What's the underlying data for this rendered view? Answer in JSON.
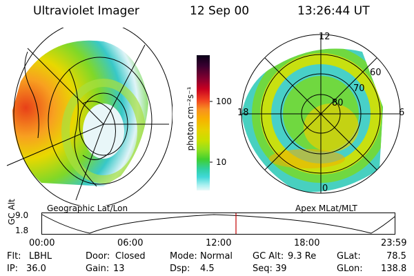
{
  "header": {
    "instrument": "Ultraviolet Imager",
    "date": "12 Sep 00",
    "time": "13:26:44 UT"
  },
  "left_panel": {
    "caption": "Geographic Lat/Lon"
  },
  "right_panel": {
    "caption": "Apex MLat/MLT",
    "mlt_labels": {
      "top": "12",
      "left": "18",
      "right": "6",
      "bottom": "0"
    },
    "lat_labels": [
      "60",
      "70",
      "80"
    ]
  },
  "colorbar": {
    "unit_label": "photon cm⁻²s⁻¹",
    "tick_labels": [
      "100",
      "10"
    ],
    "colors": [
      "#0a0018",
      "#3a0030",
      "#8a0030",
      "#c80020",
      "#f04020",
      "#f89020",
      "#f8b000",
      "#e8d000",
      "#c8e000",
      "#90e020",
      "#40d030",
      "#30d0a0",
      "#40d8d8",
      "#a8f0f0",
      "#e8f8f8"
    ]
  },
  "altitude_strip": {
    "axis_label": "GC Alt",
    "y_ticks": [
      "9.0",
      "1.8"
    ],
    "x_ticks": [
      "00:00",
      "06:00",
      "12:00",
      "18:00",
      "23:59"
    ],
    "marker_color": "#c00000"
  },
  "status": {
    "filter": {
      "label": "Flt:",
      "value": "LBHL"
    },
    "ip": {
      "label": "IP:",
      "value": "36.0"
    },
    "door": {
      "label": "Door:",
      "value": "Closed"
    },
    "gain": {
      "label": "Gain:",
      "value": "13"
    },
    "mode": {
      "label": "Mode:",
      "value": "Normal"
    },
    "dsp": {
      "label": "Dsp:",
      "value": "4.5"
    },
    "gc_alt": {
      "label": "GC Alt:",
      "value": "9.3 Re"
    },
    "seq": {
      "label": "Seq:",
      "value": "39"
    },
    "glat": {
      "label": "GLat:",
      "value": "78.5"
    },
    "glon": {
      "label": "GLon:",
      "value": "138.8"
    }
  }
}
